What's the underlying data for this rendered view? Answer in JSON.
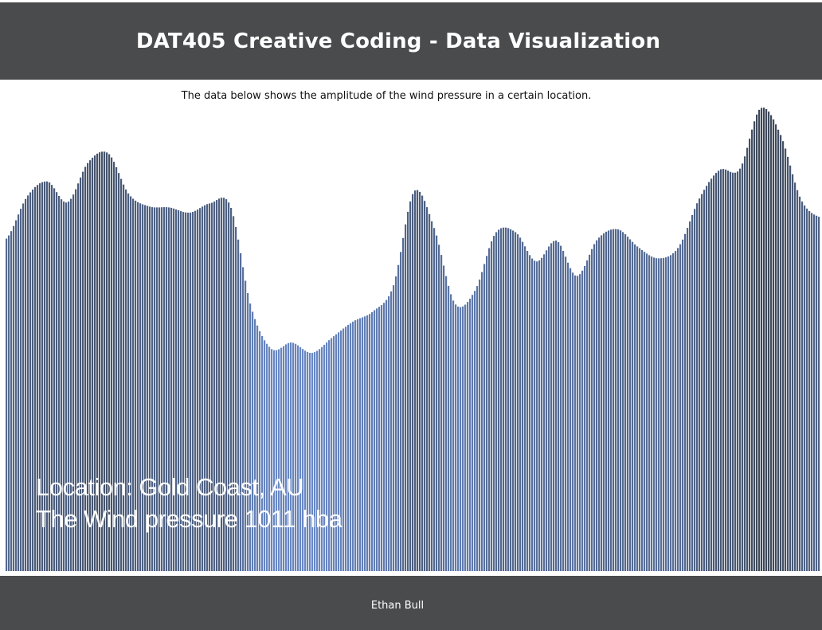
{
  "header": {
    "title": "DAT405 Creative Coding - Data Visualization"
  },
  "subtitle": "The data below shows the amplitude of the wind pressure in a certain location.",
  "overlay": {
    "location_line": "Location: Gold Coast, AU",
    "pressure_line": "The Wind pressure 1011 hba"
  },
  "footer": {
    "author": "Ethan Bull"
  },
  "colors": {
    "header_bg": "#4a4b4d",
    "bar_dark": "#3c4656",
    "bar_light": "#6a8ac8"
  },
  "chart_data": {
    "type": "area",
    "title": "",
    "xlabel": "",
    "ylabel": "",
    "ylim": [
      0,
      450
    ],
    "series": [
      {
        "values": [
          320,
          360,
          375,
          355,
          393,
          402,
          363,
          351,
          350,
          345,
          354,
          351,
          255,
          214,
          220,
          210,
          225,
          240,
          250,
          275,
          365,
          330,
          258,
          270,
          325,
          326,
          298,
          318,
          284,
          319,
          329,
          312,
          301,
          312,
          358,
          386,
          387,
          445,
          420,
          358,
          340
        ]
      }
    ]
  }
}
